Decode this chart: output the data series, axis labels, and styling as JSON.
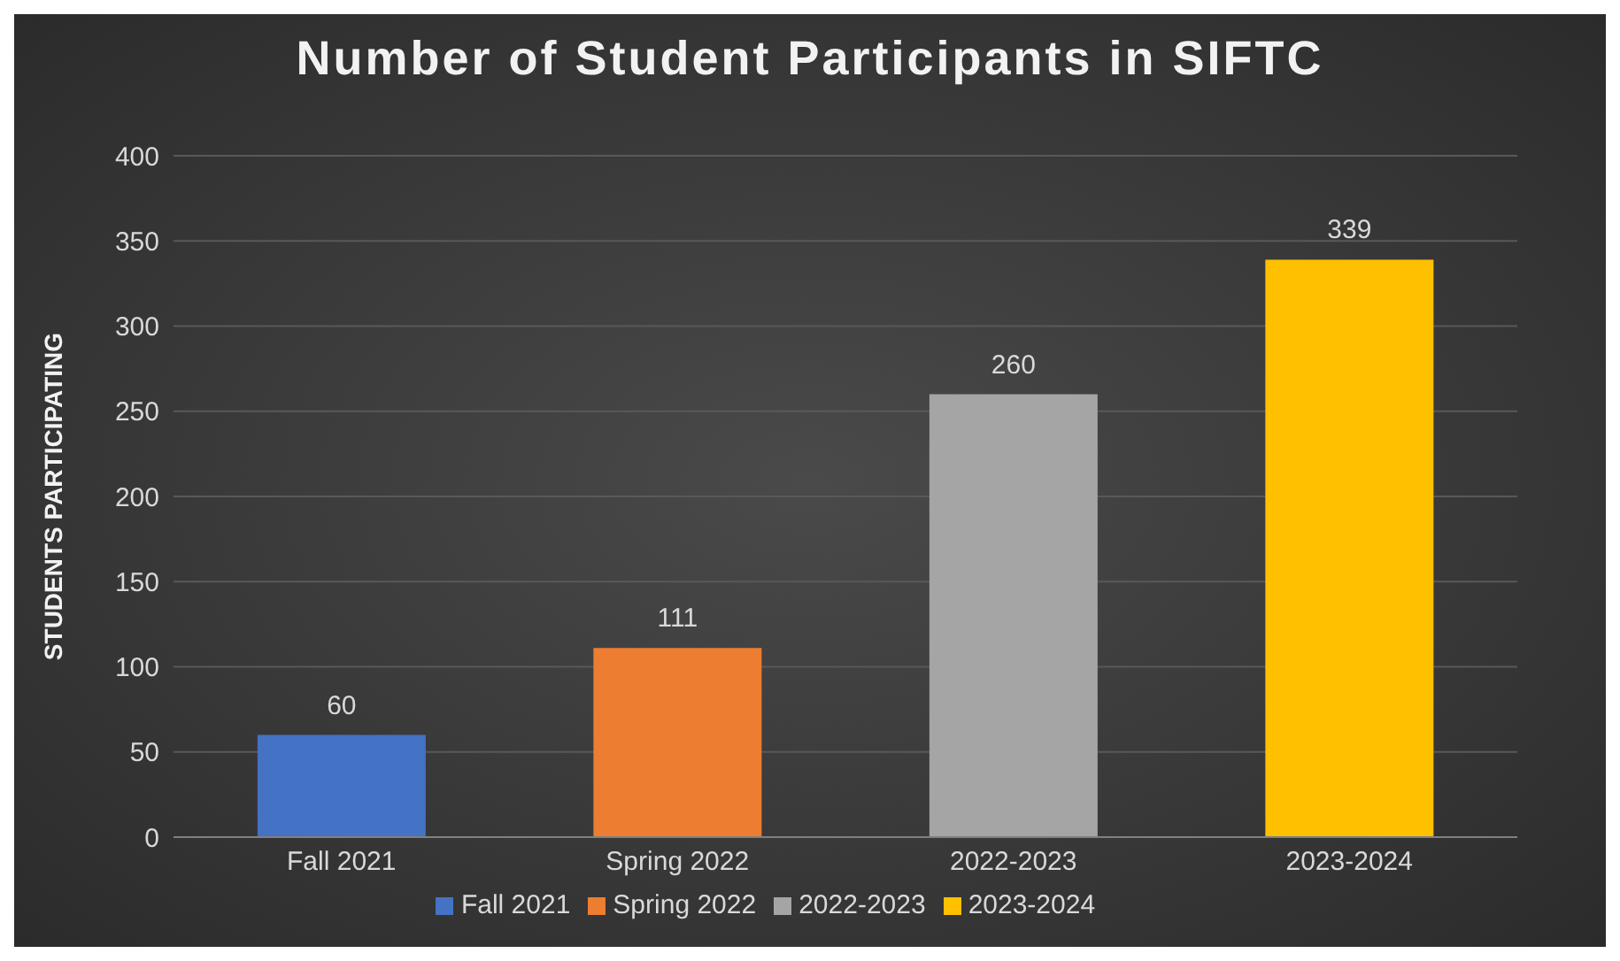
{
  "chart_data": {
    "type": "bar",
    "title": "Number of Student Participants in SIFTC",
    "ylabel": "STUDENTS PARTICIPATING",
    "categories": [
      "Fall 2021",
      "Spring 2022",
      "2022-2023",
      "2023-2024"
    ],
    "series": [
      {
        "name": "Fall 2021",
        "color": "#4472c4",
        "values": [
          60,
          null,
          null,
          null
        ]
      },
      {
        "name": "Spring 2022",
        "color": "#ed7d31",
        "values": [
          null,
          111,
          null,
          null
        ]
      },
      {
        "name": "2022-2023",
        "color": "#a5a5a5",
        "values": [
          null,
          null,
          260,
          null
        ]
      },
      {
        "name": "2023-2024",
        "color": "#ffc000",
        "values": [
          null,
          null,
          null,
          339
        ]
      }
    ],
    "stacked": true,
    "ylim": [
      0,
      400
    ],
    "yticks": [
      0,
      50,
      100,
      150,
      200,
      250,
      300,
      350,
      400
    ],
    "grid": "y",
    "legend": "bottom",
    "data_labels": true
  }
}
